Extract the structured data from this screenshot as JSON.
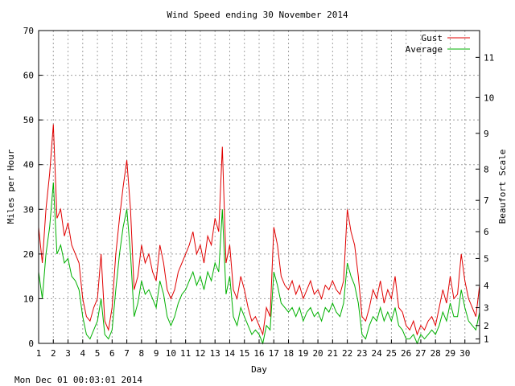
{
  "footer": {
    "timestamp": "Mon Dec 01 00:03:01 2014"
  },
  "colors": {
    "gust": "#e00000",
    "average": "#00b000",
    "grid": "#a0a0a0",
    "axis": "#000000"
  },
  "chart_data": {
    "type": "line",
    "title": "Wind Speed ending 30 November 2014",
    "xlabel": "Day",
    "ylabel": "Miles per Hour",
    "y2label": "Beaufort Scale",
    "xlim": [
      1,
      31
    ],
    "ylim": [
      0,
      70
    ],
    "grid": true,
    "legend": "top-right",
    "x_ticks": [
      "1",
      "2",
      "3",
      "4",
      "5",
      "6",
      "7",
      "8",
      "9",
      "10",
      "11",
      "12",
      "13",
      "14",
      "15",
      "16",
      "17",
      "18",
      "19",
      "20",
      "21",
      "22",
      "23",
      "24",
      "25",
      "26",
      "27",
      "28",
      "29",
      "30"
    ],
    "y_ticks": [
      "0",
      "10",
      "20",
      "30",
      "40",
      "50",
      "60",
      "70"
    ],
    "y2_ticks": [
      {
        "label": "1",
        "mph": 1
      },
      {
        "label": "2",
        "mph": 4
      },
      {
        "label": "3",
        "mph": 8
      },
      {
        "label": "4",
        "mph": 13
      },
      {
        "label": "5",
        "mph": 19
      },
      {
        "label": "6",
        "mph": 25
      },
      {
        "label": "7",
        "mph": 32
      },
      {
        "label": "8",
        "mph": 39
      },
      {
        "label": "9",
        "mph": 47
      },
      {
        "label": "10",
        "mph": 55
      },
      {
        "label": "11",
        "mph": 64
      }
    ],
    "series": [
      {
        "name": "Gust",
        "x": [
          1.0,
          1.25,
          1.5,
          1.75,
          2.0,
          2.25,
          2.5,
          2.75,
          3.0,
          3.25,
          3.5,
          3.75,
          4.0,
          4.25,
          4.5,
          4.75,
          5.0,
          5.25,
          5.5,
          5.75,
          6.0,
          6.25,
          6.5,
          6.75,
          7.0,
          7.25,
          7.5,
          7.75,
          8.0,
          8.25,
          8.5,
          8.75,
          9.0,
          9.25,
          9.5,
          9.75,
          10.0,
          10.25,
          10.5,
          10.75,
          11.0,
          11.25,
          11.5,
          11.75,
          12.0,
          12.25,
          12.5,
          12.75,
          13.0,
          13.25,
          13.5,
          13.75,
          14.0,
          14.25,
          14.5,
          14.75,
          15.0,
          15.25,
          15.5,
          15.75,
          16.0,
          16.25,
          16.5,
          16.75,
          17.0,
          17.25,
          17.5,
          17.75,
          18.0,
          18.25,
          18.5,
          18.75,
          19.0,
          19.25,
          19.5,
          19.75,
          20.0,
          20.25,
          20.5,
          20.75,
          21.0,
          21.25,
          21.5,
          21.75,
          22.0,
          22.25,
          22.5,
          22.75,
          23.0,
          23.25,
          23.5,
          23.75,
          24.0,
          24.25,
          24.5,
          24.75,
          25.0,
          25.25,
          25.5,
          25.75,
          26.0,
          26.25,
          26.5,
          26.75,
          27.0,
          27.25,
          27.5,
          27.75,
          28.0,
          28.25,
          28.5,
          28.75,
          29.0,
          29.25,
          29.5,
          29.75,
          30.0,
          30.25,
          30.5,
          30.75,
          31.0
        ],
        "values": [
          26,
          18,
          30,
          38,
          49,
          28,
          30,
          24,
          27,
          22,
          20,
          18,
          10,
          6,
          5,
          8,
          10,
          20,
          5,
          3,
          8,
          20,
          28,
          35,
          41,
          30,
          12,
          15,
          22,
          18,
          20,
          16,
          14,
          22,
          18,
          12,
          10,
          12,
          16,
          18,
          20,
          22,
          25,
          20,
          22,
          18,
          24,
          22,
          28,
          25,
          44,
          18,
          22,
          12,
          10,
          15,
          12,
          8,
          5,
          6,
          4,
          2,
          8,
          6,
          26,
          22,
          15,
          13,
          12,
          14,
          11,
          13,
          10,
          12,
          14,
          11,
          12,
          10,
          13,
          12,
          14,
          12,
          11,
          14,
          30,
          25,
          22,
          15,
          6,
          5,
          8,
          12,
          10,
          14,
          9,
          12,
          10,
          15,
          8,
          7,
          4,
          3,
          5,
          2,
          4,
          3,
          5,
          6,
          4,
          8,
          12,
          9,
          15,
          10,
          11,
          20,
          14,
          10,
          8,
          6,
          13
        ]
      },
      {
        "name": "Average",
        "x": [
          1.0,
          1.25,
          1.5,
          1.75,
          2.0,
          2.25,
          2.5,
          2.75,
          3.0,
          3.25,
          3.5,
          3.75,
          4.0,
          4.25,
          4.5,
          4.75,
          5.0,
          5.25,
          5.5,
          5.75,
          6.0,
          6.25,
          6.5,
          6.75,
          7.0,
          7.25,
          7.5,
          7.75,
          8.0,
          8.25,
          8.5,
          8.75,
          9.0,
          9.25,
          9.5,
          9.75,
          10.0,
          10.25,
          10.5,
          10.75,
          11.0,
          11.25,
          11.5,
          11.75,
          12.0,
          12.25,
          12.5,
          12.75,
          13.0,
          13.25,
          13.5,
          13.75,
          14.0,
          14.25,
          14.5,
          14.75,
          15.0,
          15.25,
          15.5,
          15.75,
          16.0,
          16.25,
          16.5,
          16.75,
          17.0,
          17.25,
          17.5,
          17.75,
          18.0,
          18.25,
          18.5,
          18.75,
          19.0,
          19.25,
          19.5,
          19.75,
          20.0,
          20.25,
          20.5,
          20.75,
          21.0,
          21.25,
          21.5,
          21.75,
          22.0,
          22.25,
          22.5,
          22.75,
          23.0,
          23.25,
          23.5,
          23.75,
          24.0,
          24.25,
          24.5,
          24.75,
          25.0,
          25.25,
          25.5,
          25.75,
          26.0,
          26.25,
          26.5,
          26.75,
          27.0,
          27.25,
          27.5,
          27.75,
          28.0,
          28.25,
          28.5,
          28.75,
          29.0,
          29.25,
          29.5,
          29.75,
          30.0,
          30.25,
          30.5,
          30.75,
          31.0
        ],
        "values": [
          16,
          10,
          20,
          26,
          36,
          20,
          22,
          18,
          19,
          15,
          14,
          12,
          6,
          2,
          1,
          3,
          5,
          10,
          2,
          1,
          3,
          12,
          20,
          26,
          30,
          20,
          6,
          9,
          14,
          11,
          12,
          10,
          8,
          14,
          11,
          6,
          4,
          6,
          9,
          11,
          12,
          14,
          16,
          13,
          15,
          12,
          16,
          14,
          18,
          16,
          30,
          11,
          15,
          6,
          4,
          8,
          6,
          4,
          2,
          3,
          2,
          0,
          4,
          3,
          16,
          13,
          9,
          8,
          7,
          8,
          6,
          8,
          5,
          7,
          8,
          6,
          7,
          5,
          8,
          7,
          9,
          7,
          6,
          9,
          18,
          15,
          13,
          9,
          2,
          1,
          4,
          6,
          5,
          8,
          5,
          7,
          5,
          8,
          4,
          3,
          1,
          1,
          2,
          0,
          2,
          1,
          2,
          3,
          2,
          4,
          7,
          5,
          9,
          6,
          6,
          12,
          8,
          5,
          4,
          3,
          7
        ]
      }
    ]
  }
}
